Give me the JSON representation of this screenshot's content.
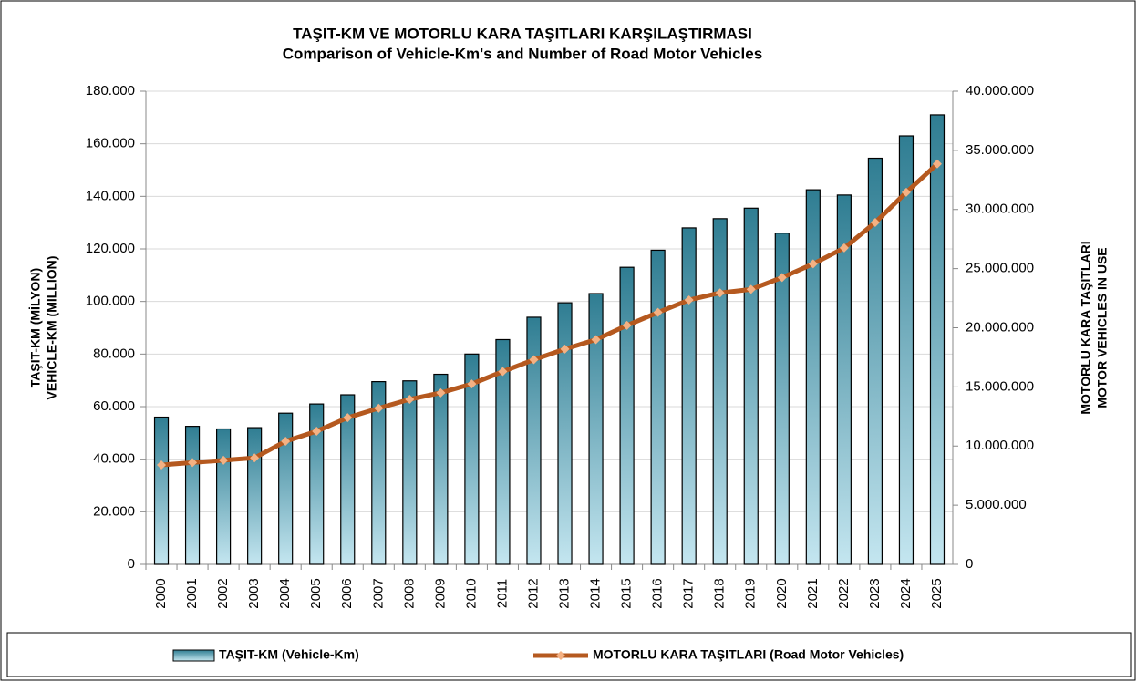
{
  "chart_data": {
    "type": "bar-line",
    "title": "TAŞIT-KM VE MOTORLU KARA TAŞITLARI KARŞILAŞTIRMASI",
    "subtitle": "Comparison of Vehicle-Km's and Number of Road Motor Vehicles",
    "ylabel": [
      "TAŞIT-KM (MİLYON)",
      "VEHICLE-KM (MILLION)"
    ],
    "y2label": [
      "MOTORLU KARA TAŞITLARI",
      "MOTOR VEHICLES IN USE"
    ],
    "categories": [
      "2000",
      "2001",
      "2002",
      "2003",
      "2004",
      "2005",
      "2006",
      "2007",
      "2008",
      "2009",
      "2010",
      "2011",
      "2012",
      "2013",
      "2014",
      "2015",
      "2016",
      "2017",
      "2018",
      "2019",
      "2020",
      "2021",
      "2022",
      "2023",
      "2024",
      "2025"
    ],
    "series": [
      {
        "name": "TAŞIT-KM (Vehicle-Km)",
        "type": "bar",
        "color": "#2f7d92",
        "values": [
          56000,
          52500,
          51500,
          52000,
          57500,
          61000,
          64500,
          69500,
          69800,
          72300,
          80000,
          85500,
          94000,
          99500,
          103000,
          113000,
          119500,
          128000,
          131500,
          135500,
          126000,
          142500,
          140500,
          154500,
          163000,
          171000
        ]
      },
      {
        "name": "MOTORLU KARA TAŞITLARI (Road Motor Vehicles)",
        "type": "line",
        "axis": "y2",
        "color": "#b5591f",
        "marker_color": "#f4b183",
        "values": [
          8400000,
          8600000,
          8800000,
          9000000,
          10400000,
          11250000,
          12400000,
          13200000,
          13950000,
          14500000,
          15250000,
          16300000,
          17300000,
          18200000,
          19000000,
          20200000,
          21300000,
          22350000,
          22950000,
          23250000,
          24250000,
          25400000,
          26750000,
          28900000,
          31450000,
          33850000
        ]
      }
    ],
    "ylim": [
      0,
      180000
    ],
    "yticks": [
      0,
      {
        "value": 20000,
        "label": "20.000"
      },
      {
        "value": 40000,
        "label": "40.000"
      },
      {
        "value": 60000,
        "label": "60.000"
      },
      {
        "value": 80000,
        "label": "80.000"
      },
      {
        "value": 100000,
        "label": "100.000"
      },
      {
        "value": 120000,
        "label": "120.000"
      },
      {
        "value": 140000,
        "label": "140.000"
      },
      {
        "value": 160000,
        "label": "160.000"
      },
      {
        "value": 180000,
        "label": "180.000"
      }
    ],
    "y2lim": [
      0,
      40000000
    ],
    "y2ticks": [
      0,
      {
        "value": 5000000,
        "label": "5.000.000"
      },
      {
        "value": 10000000,
        "label": "10.000.000"
      },
      {
        "value": 15000000,
        "label": "15.000.000"
      },
      {
        "value": 20000000,
        "label": "20.000.000"
      },
      {
        "value": 25000000,
        "label": "25.000.000"
      },
      {
        "value": 30000000,
        "label": "30.000.000"
      },
      {
        "value": 35000000,
        "label": "35.000.000"
      },
      {
        "value": 40000000,
        "label": "40.000.000"
      }
    ],
    "grid": true,
    "legend": "bottom"
  }
}
